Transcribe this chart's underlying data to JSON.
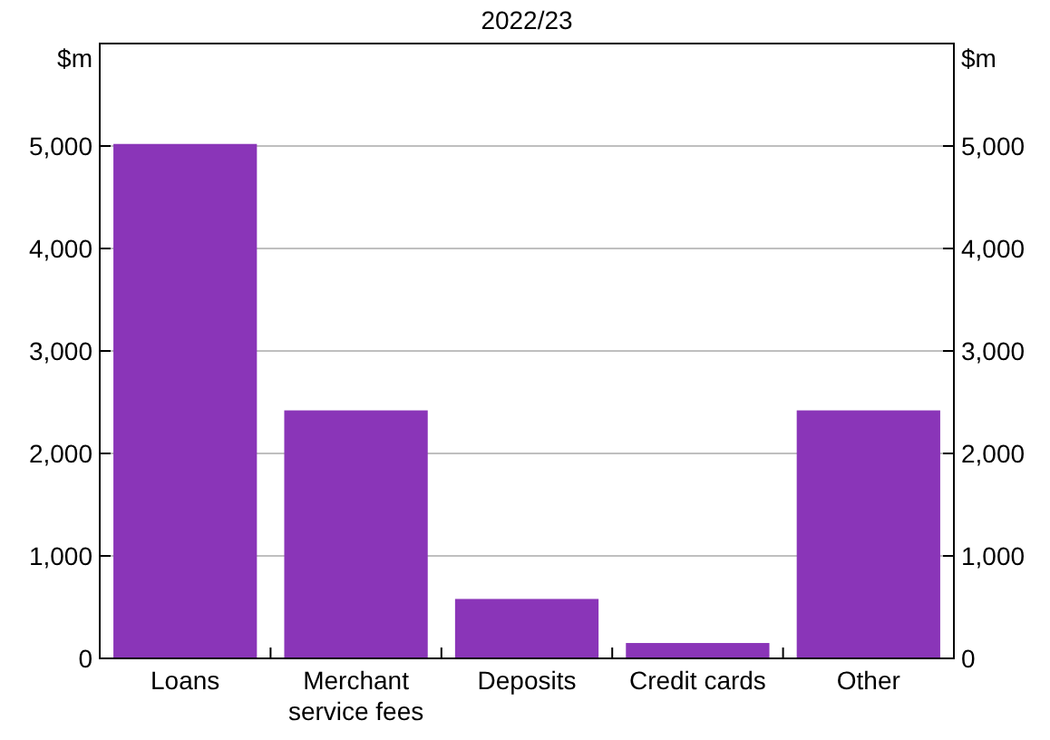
{
  "chart_data": {
    "type": "bar",
    "title": "2022/23",
    "ylabel": "$m",
    "y2label": "$m",
    "categories": [
      "Loans",
      "Merchant service fees",
      "Deposits",
      "Credit cards",
      "Other"
    ],
    "values": [
      5020,
      2420,
      580,
      150,
      2420
    ],
    "color": "#8a35b8",
    "ylim": [
      0,
      6000
    ],
    "yticks": [
      {
        "value": 0,
        "label": "0"
      },
      {
        "value": 1000,
        "label": "1,000"
      },
      {
        "value": 2000,
        "label": "2,000"
      },
      {
        "value": 3000,
        "label": "3,000"
      },
      {
        "value": 4000,
        "label": "4,000"
      },
      {
        "value": 5000,
        "label": "5,000"
      }
    ],
    "y2lim": [
      0,
      6000
    ],
    "y2ticks": [
      {
        "value": 0,
        "label": "0"
      },
      {
        "value": 1000,
        "label": "1,000"
      },
      {
        "value": 2000,
        "label": "2,000"
      },
      {
        "value": 3000,
        "label": "3,000"
      },
      {
        "value": 4000,
        "label": "4,000"
      },
      {
        "value": 5000,
        "label": "5,000"
      }
    ],
    "grid": "y"
  }
}
